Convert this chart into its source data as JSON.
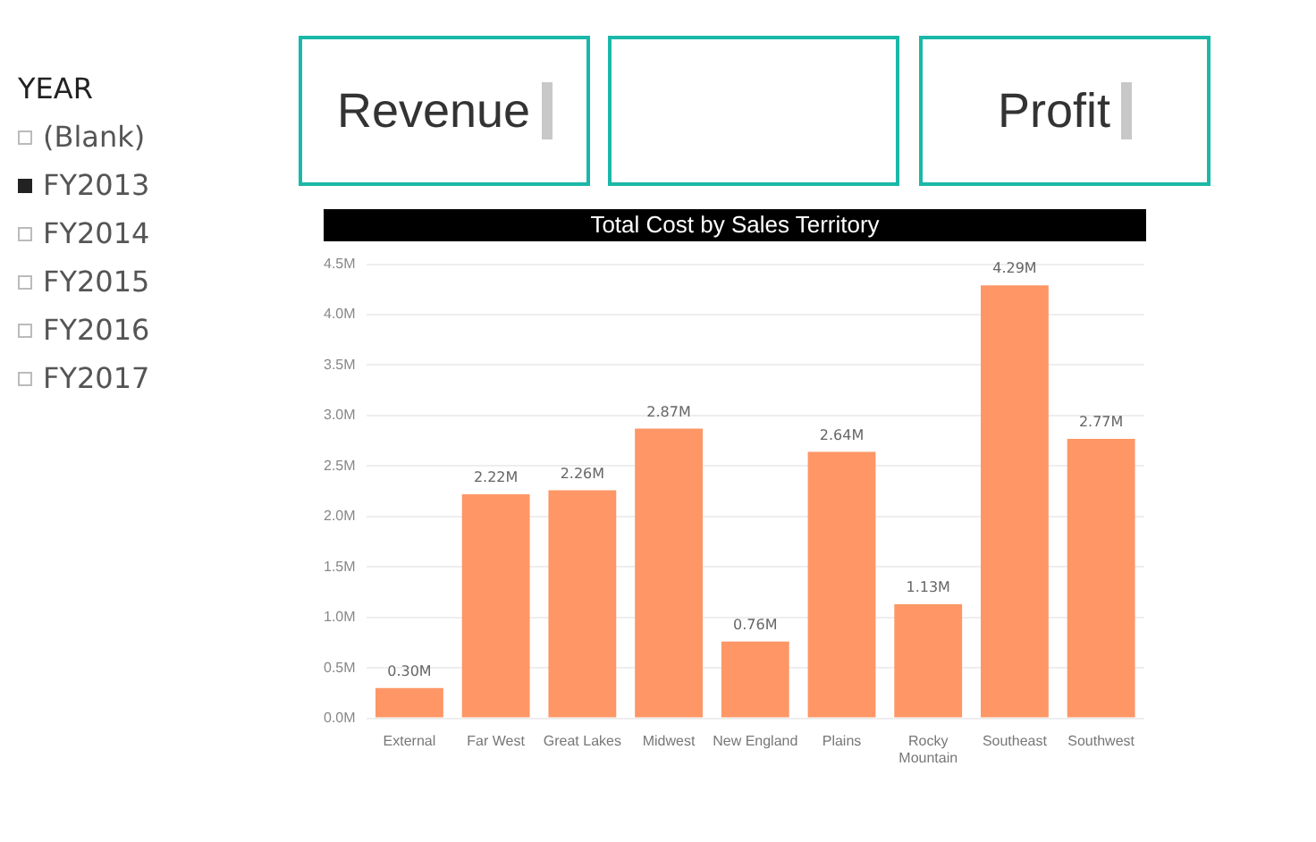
{
  "chart_data": [
    {
      "type": "other",
      "title": "YEAR",
      "annotations": [
        "(Blank)",
        "FY2013",
        "FY2014",
        "FY2015",
        "FY2016",
        "FY2017"
      ]
    },
    {
      "type": "other",
      "title": "Revenue"
    },
    {
      "type": "other",
      "title": "Profit"
    },
    {
      "type": "bar",
      "title": "Total Cost by Sales Territory",
      "categories": [
        "External",
        "Far West",
        "Great Lakes",
        "Midwest",
        "New England",
        "Plains",
        "Rocky Mountain",
        "Southeast",
        "Southwest"
      ],
      "values": [
        0.3,
        2.22,
        2.26,
        2.87,
        0.76,
        2.64,
        1.13,
        4.29,
        2.77
      ],
      "value_labels": [
        "0.30M",
        "2.22M",
        "2.26M",
        "2.87M",
        "0.76M",
        "2.64M",
        "1.13M",
        "4.29M",
        "2.77M"
      ],
      "color": "#fe9666",
      "ylim": [
        0,
        4.5
      ],
      "yticks": [
        {
          "value": 0,
          "label": "0.0M"
        },
        {
          "value": 0.5,
          "label": "0.5M"
        },
        {
          "value": 1,
          "label": "1.0M"
        },
        {
          "value": 1.5,
          "label": "1.5M"
        },
        {
          "value": 2,
          "label": "2.0M"
        },
        {
          "value": 2.5,
          "label": "2.5M"
        },
        {
          "value": 3,
          "label": "3.0M"
        },
        {
          "value": 3.5,
          "label": "3.5M"
        },
        {
          "value": 4,
          "label": "4.0M"
        },
        {
          "value": 4.5,
          "label": "4.5M"
        }
      ],
      "grid": "y",
      "legend": false
    }
  ]
}
